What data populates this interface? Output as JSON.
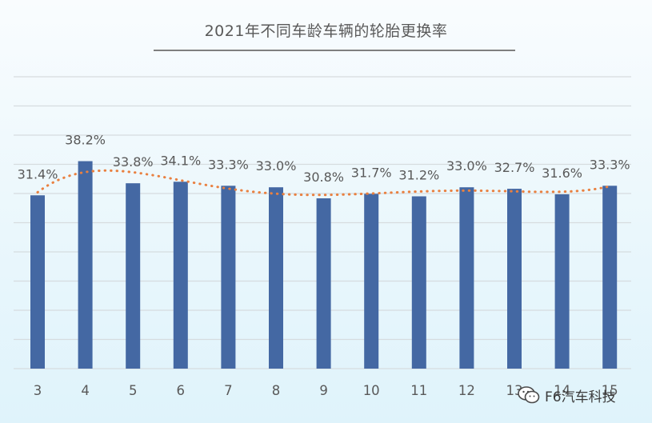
{
  "chart_data": {
    "type": "bar",
    "title": "2021年不同车龄车辆的轮胎更换率",
    "categories": [
      "3",
      "4",
      "5",
      "6",
      "7",
      "8",
      "9",
      "10",
      "11",
      "12",
      "13",
      "14",
      "15"
    ],
    "series": [
      {
        "values": [
          31.4,
          38.2,
          33.8,
          34.1,
          33.3,
          33.0,
          30.8,
          31.7,
          31.2,
          33.0,
          32.7,
          31.6,
          33.3
        ],
        "labels": [
          "31.4%",
          "38.2%",
          "33.8%",
          "34.1%",
          "33.3%",
          "33.0%",
          "30.8%",
          "31.7%",
          "31.2%",
          "33.0%",
          "32.7%",
          "31.6%",
          "33.3%"
        ]
      }
    ],
    "trendline": "polynomial",
    "ylim": [
      -3.1,
      55
    ],
    "grid": true,
    "legend": "none",
    "colors": {
      "bar": "#4468a3",
      "trend": "#e98040",
      "grid": "#d6dcdf",
      "text": "#595959"
    }
  },
  "watermark": {
    "text": "F6汽车科技",
    "icon": "wechat-icon"
  }
}
